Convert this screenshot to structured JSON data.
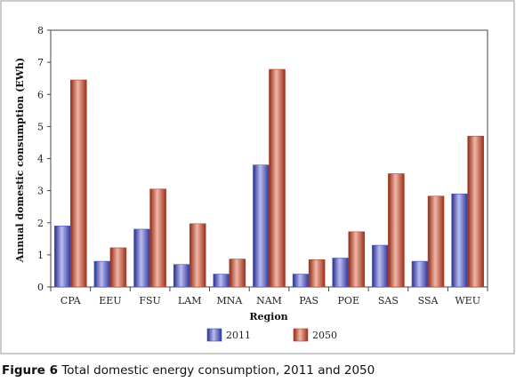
{
  "chart_data": {
    "type": "bar",
    "categories": [
      "CPA",
      "EEU",
      "FSU",
      "LAM",
      "MNA",
      "NAM",
      "PAS",
      "POE",
      "SAS",
      "SSA",
      "WEU"
    ],
    "series": [
      {
        "name": "2011",
        "values": [
          1.9,
          0.8,
          1.8,
          0.7,
          0.4,
          3.8,
          0.4,
          0.9,
          1.3,
          0.8,
          2.9
        ],
        "color": "#4a50b8"
      },
      {
        "name": "2050",
        "values": [
          6.45,
          1.22,
          3.05,
          1.97,
          0.87,
          6.78,
          0.85,
          1.72,
          3.53,
          2.83,
          4.7
        ],
        "color": "#b8432e"
      }
    ],
    "xlabel": "Region",
    "ylabel": "Annual domestic consumption (EWh)",
    "ylim": [
      0,
      8
    ],
    "yticks": [
      0,
      1,
      2,
      3,
      4,
      5,
      6,
      7,
      8
    ],
    "grid": false,
    "legend_position": "bottom-center"
  },
  "caption": {
    "label": "Figure 6",
    "text": "Total domestic energy consumption, 2011 and 2050"
  }
}
